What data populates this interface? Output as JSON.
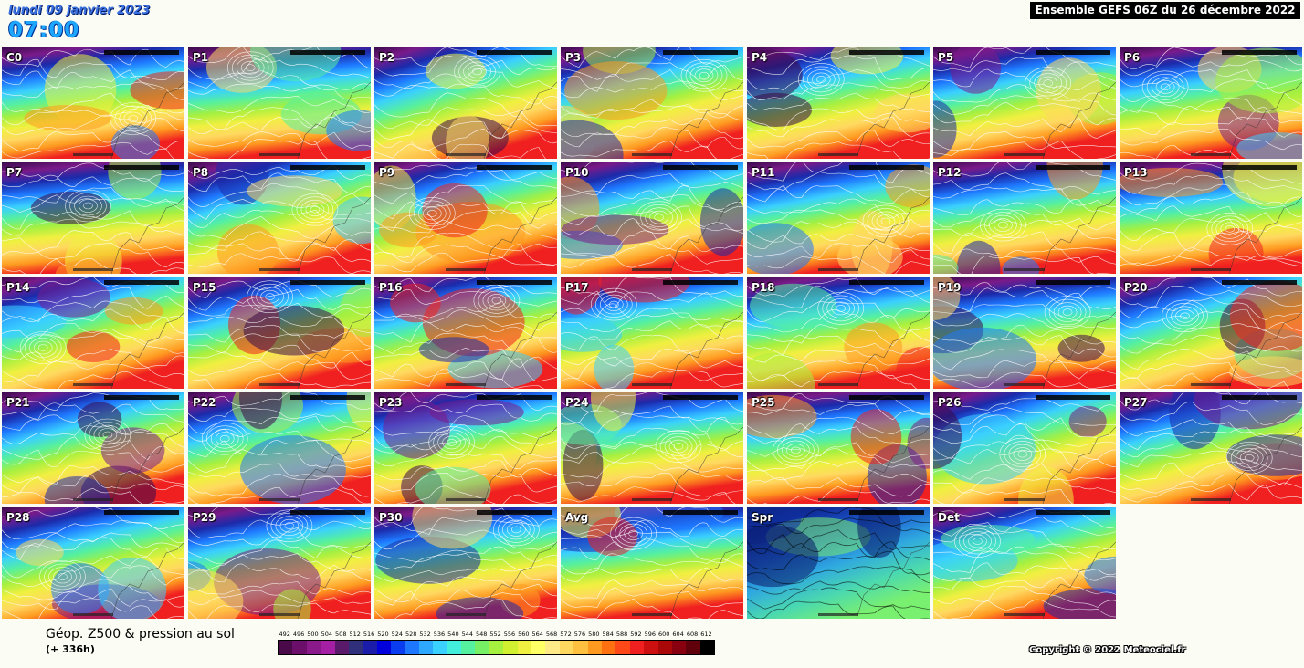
{
  "header": {
    "date": "lundi 09 janvier 2023",
    "time": "07:00",
    "run_title": "Ensemble GEFS 06Z du 26 décembre 2022"
  },
  "panels": [
    {
      "label": "C0",
      "palette": "jet"
    },
    {
      "label": "P1",
      "palette": "jet"
    },
    {
      "label": "P2",
      "palette": "jet"
    },
    {
      "label": "P3",
      "palette": "jet"
    },
    {
      "label": "P4",
      "palette": "jet"
    },
    {
      "label": "P5",
      "palette": "jet"
    },
    {
      "label": "P6",
      "palette": "jet"
    },
    {
      "label": "P7",
      "palette": "jet"
    },
    {
      "label": "P8",
      "palette": "jet"
    },
    {
      "label": "P9",
      "palette": "jet"
    },
    {
      "label": "P10",
      "palette": "jet"
    },
    {
      "label": "P11",
      "palette": "jet"
    },
    {
      "label": "P12",
      "palette": "jet"
    },
    {
      "label": "P13",
      "palette": "jet"
    },
    {
      "label": "P14",
      "palette": "jet"
    },
    {
      "label": "P15",
      "palette": "jet"
    },
    {
      "label": "P16",
      "palette": "jet"
    },
    {
      "label": "P17",
      "palette": "jet"
    },
    {
      "label": "P18",
      "palette": "jet"
    },
    {
      "label": "P19",
      "palette": "jet"
    },
    {
      "label": "P20",
      "palette": "jet"
    },
    {
      "label": "P21",
      "palette": "jet"
    },
    {
      "label": "P22",
      "palette": "jet"
    },
    {
      "label": "P23",
      "palette": "jet"
    },
    {
      "label": "P24",
      "palette": "jet"
    },
    {
      "label": "P25",
      "palette": "jet"
    },
    {
      "label": "P26",
      "palette": "jet"
    },
    {
      "label": "P27",
      "palette": "jet"
    },
    {
      "label": "P28",
      "palette": "jet"
    },
    {
      "label": "P29",
      "palette": "jet"
    },
    {
      "label": "P30",
      "palette": "jet"
    },
    {
      "label": "Avg",
      "palette": "jet"
    },
    {
      "label": "Spr",
      "palette": "spread"
    },
    {
      "label": "Det",
      "palette": "jet"
    }
  ],
  "legend": {
    "title": "Géop. Z500 & pression au sol",
    "subtitle": "(+ 336h)",
    "scale_values": [
      "492",
      "496",
      "500",
      "504",
      "508",
      "512",
      "516",
      "520",
      "524",
      "528",
      "532",
      "536",
      "540",
      "544",
      "548",
      "552",
      "556",
      "560",
      "564",
      "568",
      "572",
      "576",
      "580",
      "584",
      "588",
      "592",
      "596",
      "600",
      "604",
      "608",
      "612"
    ],
    "scale_colors": [
      "#4a0a4a",
      "#6b0f6b",
      "#8a1a8a",
      "#a41fa4",
      "#5a1a6a",
      "#30307a",
      "#1c1caa",
      "#0000dd",
      "#0a3cf0",
      "#1e78ff",
      "#2ea8ff",
      "#3ad0ff",
      "#44eedd",
      "#55f0a0",
      "#77f066",
      "#a6f040",
      "#d0f030",
      "#f0f040",
      "#ffff66",
      "#ffea88",
      "#ffd860",
      "#ffc040",
      "#ff9a20",
      "#ff7010",
      "#ff4818",
      "#f02020",
      "#cc1010",
      "#aa0808",
      "#880010",
      "#60000a",
      "#000000"
    ]
  },
  "copyright": "Copyright © 2022 Meteociel.fr"
}
